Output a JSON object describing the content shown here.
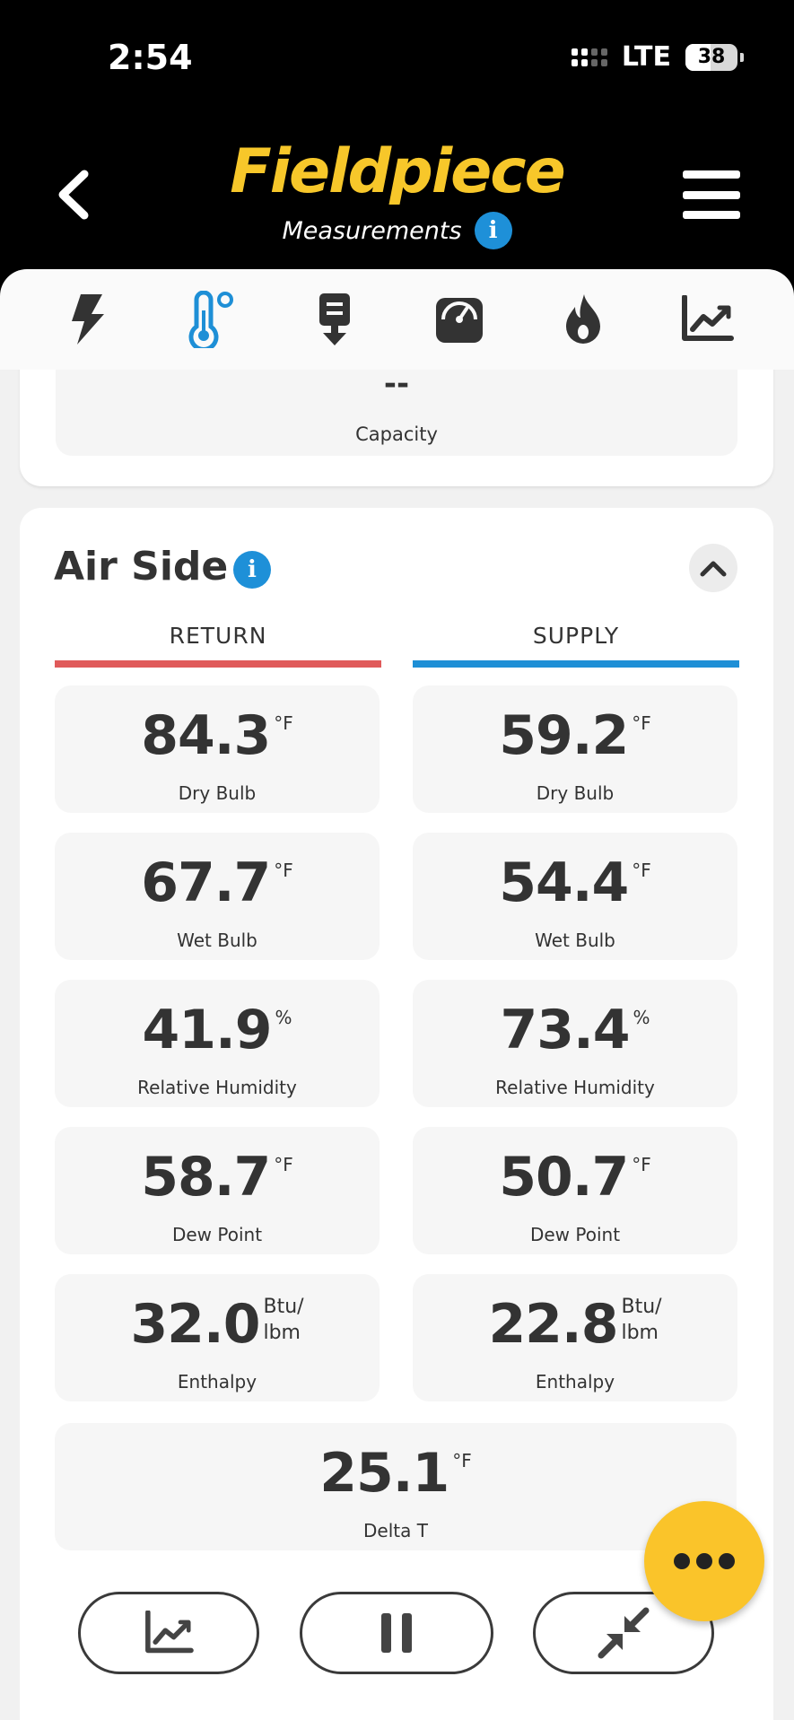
{
  "status_bar": {
    "time": "2:54",
    "network": "LTE",
    "battery": "38",
    "battery_level_percent": 38
  },
  "header": {
    "logo": "Fieldpiece",
    "subtitle": "Measurements",
    "info": "i",
    "back_icon": "chevron-left-icon",
    "menu_icon": "hamburger-menu-icon",
    "logo_color": "#f7c72a"
  },
  "tabs": [
    {
      "icon": "lightning-icon",
      "active": false
    },
    {
      "icon": "thermometer-icon",
      "active": true
    },
    {
      "icon": "condenser-icon",
      "active": false
    },
    {
      "icon": "gauge-icon",
      "active": false
    },
    {
      "icon": "flame-icon",
      "active": false
    },
    {
      "icon": "trend-chart-icon",
      "active": false
    }
  ],
  "capacity": {
    "value": "--",
    "label": "Capacity"
  },
  "air_side": {
    "title": "Air Side",
    "info": "i",
    "return_label": "RETURN",
    "supply_label": "SUPPLY",
    "return_color": "#e05a5a",
    "supply_color": "#1e8fd6",
    "return": [
      {
        "value": "84.3",
        "unit": "°F",
        "label": "Dry Bulb"
      },
      {
        "value": "67.7",
        "unit": "°F",
        "label": "Wet Bulb"
      },
      {
        "value": "41.9",
        "unit": "%",
        "label": "Relative Humidity"
      },
      {
        "value": "58.7",
        "unit": "°F",
        "label": "Dew Point"
      },
      {
        "value": "32.0",
        "unit_top": "Btu/",
        "unit_bottom": "lbm",
        "label": "Enthalpy"
      }
    ],
    "supply": [
      {
        "value": "59.2",
        "unit": "°F",
        "label": "Dry Bulb"
      },
      {
        "value": "54.4",
        "unit": "°F",
        "label": "Wet Bulb"
      },
      {
        "value": "73.4",
        "unit": "%",
        "label": "Relative Humidity"
      },
      {
        "value": "50.7",
        "unit": "°F",
        "label": "Dew Point"
      },
      {
        "value": "22.8",
        "unit_top": "Btu/",
        "unit_bottom": "lbm",
        "label": "Enthalpy"
      }
    ],
    "delta_t": {
      "value": "25.1",
      "unit": "°F",
      "label": "Delta T"
    }
  },
  "actions": {
    "graph_icon": "trend-chart-icon",
    "pause_icon": "pause-icon",
    "collapse_icon": "minimize-arrows-icon",
    "more_icon": "more-dots-icon",
    "fab_color": "#fac42a"
  }
}
